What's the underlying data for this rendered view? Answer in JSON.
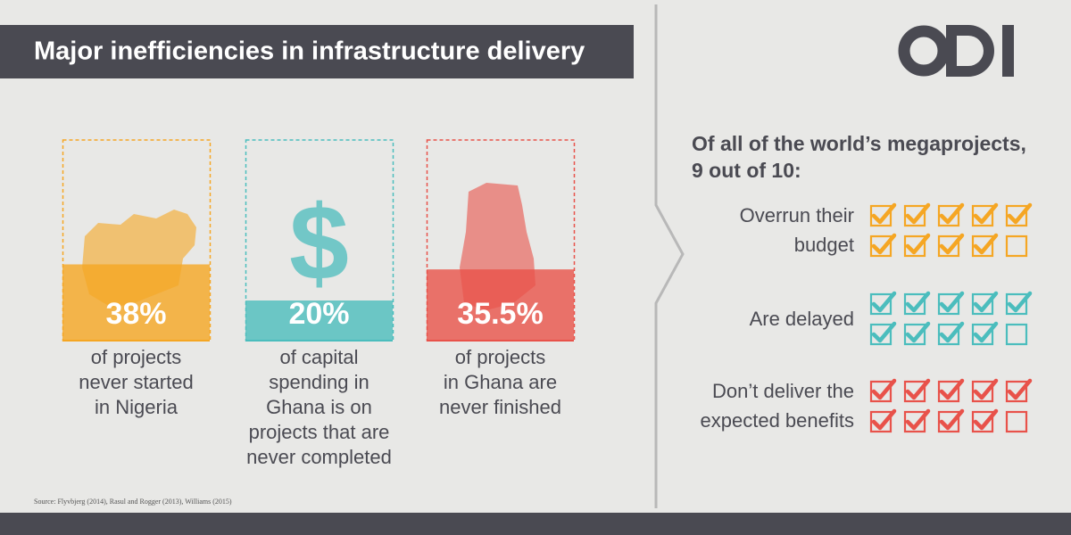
{
  "header": {
    "title": "Major inefficiencies in infrastructure delivery"
  },
  "stats": [
    {
      "value": 38,
      "label": "38%",
      "color": "#f5a623",
      "caption": [
        "of projects",
        "never started",
        "in Nigeria"
      ]
    },
    {
      "value": 20,
      "label": "20%",
      "color": "#4bbdbd",
      "icon": "$",
      "caption": [
        "of capital",
        "spending in",
        "Ghana is on",
        "projects that are",
        "never completed"
      ]
    },
    {
      "value": 35.5,
      "label": "35.5%",
      "color": "#e8524a",
      "caption": [
        "of projects",
        "in Ghana are",
        "never finished"
      ]
    }
  ],
  "source": "Source: Flyvbjerg (2014), Rasul and Rogger (2013), Williams (2015)",
  "megaprojects": {
    "heading": [
      "Of all of the world’s megaprojects,",
      "9 out of 10:"
    ],
    "groups": [
      {
        "label": [
          "Overrun their",
          "budget"
        ],
        "checked": 9,
        "total": 10,
        "color": "#f5a623"
      },
      {
        "label": [
          "Are delayed"
        ],
        "checked": 9,
        "total": 10,
        "color": "#4bbdbd"
      },
      {
        "label": [
          "Don’t deliver the",
          "expected benefits"
        ],
        "checked": 9,
        "total": 10,
        "color": "#e8524a"
      }
    ]
  }
}
